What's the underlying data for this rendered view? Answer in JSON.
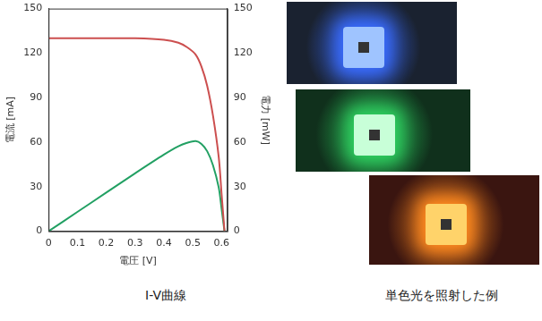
{
  "chart_data": {
    "type": "line",
    "x": [
      0,
      0.1,
      0.2,
      0.3,
      0.4,
      0.45,
      0.48,
      0.51,
      0.53,
      0.55,
      0.57,
      0.59,
      0.6,
      0.61
    ],
    "series": [
      {
        "color": "#cc4f4f",
        "axis": "y",
        "values": [
          130,
          130,
          130,
          130,
          129,
          127,
          124,
          119,
          111,
          98,
          78,
          50,
          25,
          0
        ]
      },
      {
        "color": "#22a063",
        "axis": "y2",
        "values": [
          0,
          13,
          26,
          39,
          51.6,
          57.2,
          59.5,
          60.7,
          58.8,
          53.9,
          44.5,
          29.5,
          15,
          0
        ]
      }
    ],
    "x_label": "電圧 [V]",
    "y_label": "電流 [mA]",
    "y2_label": "電力 [mW]",
    "xlim": [
      0,
      0.62
    ],
    "xticks": [
      0,
      0.1,
      0.2,
      0.3,
      0.4,
      0.5,
      0.6
    ],
    "ylim": [
      0,
      150
    ],
    "yticks": [
      0,
      30,
      60,
      90,
      120,
      150
    ],
    "y2lim": [
      0,
      150
    ],
    "y2ticks": [
      0,
      30,
      60,
      90,
      120,
      150
    ],
    "grid": false
  },
  "captions": {
    "chart": "I-V曲線",
    "photos": "単色光を照射した例"
  }
}
